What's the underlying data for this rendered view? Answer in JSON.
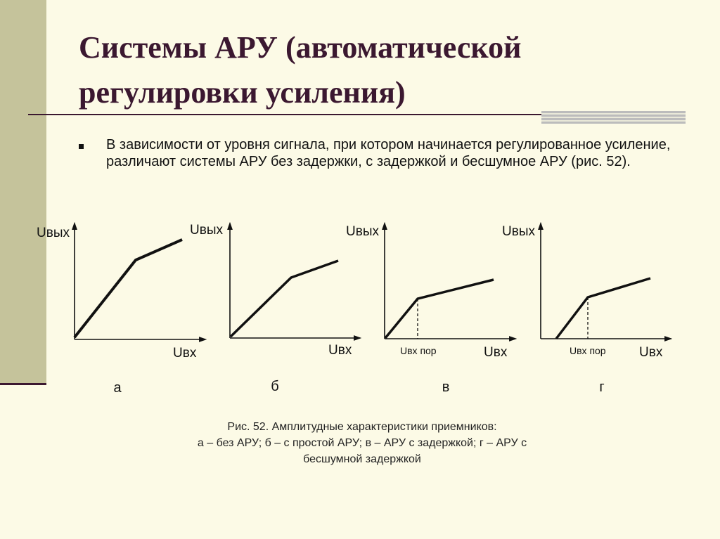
{
  "slide": {
    "title": "Системы АРУ (автоматической регулировки усиления)",
    "bullet": "В зависимости от уровня сигнала, при котором начинается регулированное усиление, различают системы АРУ без задержки, с задержкой и бесшумное АРУ (рис. 52)."
  },
  "figure": {
    "panels": [
      {
        "letter": "а",
        "y_label": "Uвых",
        "x_label": "Uвх",
        "threshold_label": ""
      },
      {
        "letter": "б",
        "y_label": "Uвых",
        "x_label": "Uвх",
        "threshold_label": ""
      },
      {
        "letter": "в",
        "y_label": "Uвых",
        "x_label": "Uвх",
        "threshold_label": "Uвх пор"
      },
      {
        "letter": "г",
        "y_label": "Uвых",
        "x_label": "Uвх",
        "threshold_label": "Uвх пор"
      }
    ],
    "caption": {
      "line1": "Рис. 52. Амплитудные характеристики приемников:",
      "line2": "а – без АРУ; б – с простой АРУ; в – АРУ с задержкой; г – АРУ с",
      "line3": "бесшумной задержкой"
    }
  },
  "colors": {
    "background": "#fcfae6",
    "accent_bar": "#c5c39b",
    "title_text": "#3b1830"
  }
}
